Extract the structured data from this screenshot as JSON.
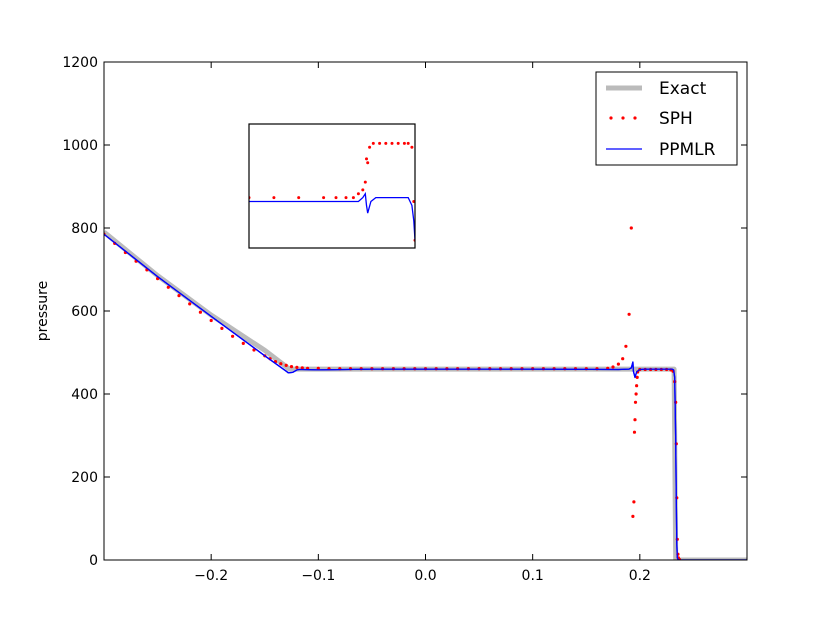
{
  "chart_data": {
    "type": "line",
    "title": "",
    "xlabel": "",
    "ylabel": "pressure",
    "xlim": [
      -0.3,
      0.3
    ],
    "ylim": [
      0,
      1200
    ],
    "x_ticks": [
      -0.2,
      -0.1,
      0.0,
      0.1,
      0.2
    ],
    "x_tick_labels": [
      "−0.2",
      "−0.1",
      "0.0",
      "0.1",
      "0.2"
    ],
    "y_ticks": [
      0,
      200,
      400,
      600,
      800,
      1000,
      1200
    ],
    "y_tick_labels": [
      "0",
      "200",
      "400",
      "600",
      "800",
      "1000",
      "1200"
    ],
    "grid": false,
    "legend_position": "top-right",
    "series": [
      {
        "name": "Exact",
        "style": "line",
        "color": "#bbbbbb",
        "x": [
          -0.3,
          -0.25,
          -0.2,
          -0.15,
          -0.127,
          0.0,
          0.1,
          0.2,
          0.232,
          0.2335,
          0.235,
          0.3
        ],
        "y": [
          790,
          685,
          590,
          505,
          460,
          460,
          460,
          460,
          460,
          0,
          0,
          0
        ]
      },
      {
        "name": "SPH",
        "style": "dots",
        "color": "#ff0000",
        "x": [
          -0.3,
          -0.29,
          -0.28,
          -0.27,
          -0.26,
          -0.25,
          -0.24,
          -0.23,
          -0.22,
          -0.21,
          -0.2,
          -0.19,
          -0.18,
          -0.17,
          -0.16,
          -0.15,
          -0.145,
          -0.14,
          -0.135,
          -0.13,
          -0.125,
          -0.12,
          -0.115,
          -0.11,
          -0.1,
          -0.09,
          -0.08,
          -0.07,
          -0.06,
          -0.05,
          -0.04,
          -0.03,
          -0.02,
          -0.01,
          0.0,
          0.01,
          0.02,
          0.03,
          0.04,
          0.05,
          0.06,
          0.07,
          0.08,
          0.09,
          0.1,
          0.11,
          0.12,
          0.13,
          0.14,
          0.15,
          0.16,
          0.17,
          0.175,
          0.18,
          0.184,
          0.187,
          0.19,
          0.192,
          0.1935,
          0.1945,
          0.195,
          0.1955,
          0.196,
          0.1965,
          0.197,
          0.1975,
          0.198,
          0.2,
          0.205,
          0.21,
          0.215,
          0.22,
          0.225,
          0.229,
          0.231,
          0.2325,
          0.2335,
          0.234,
          0.2345,
          0.235,
          0.2355,
          0.236,
          0.2365,
          0.237
        ],
        "y": [
          785,
          763,
          741,
          720,
          699,
          678,
          657,
          637,
          617,
          597,
          577,
          558,
          539,
          522,
          506,
          492,
          485,
          478,
          473,
          469,
          466,
          464,
          463,
          462,
          462,
          461,
          461,
          461,
          461,
          461,
          461,
          461,
          461,
          461,
          461,
          461,
          461,
          461,
          461,
          461,
          461,
          461,
          461,
          461,
          461,
          461,
          461,
          461,
          461,
          461,
          461,
          462,
          465,
          472,
          485,
          515,
          592,
          800,
          105,
          140,
          308,
          338,
          380,
          400,
          420,
          440,
          453,
          459,
          459,
          459,
          459,
          459,
          459,
          458,
          455,
          430,
          380,
          280,
          150,
          50,
          14,
          5,
          2,
          1
        ]
      },
      {
        "name": "PPMLR",
        "style": "line",
        "color": "#0000ff",
        "x": [
          -0.3,
          -0.25,
          -0.2,
          -0.15,
          -0.13,
          -0.128,
          -0.124,
          -0.122,
          -0.12,
          -0.118,
          -0.115,
          -0.1,
          -0.05,
          0.0,
          0.1,
          0.18,
          0.19,
          0.192,
          0.1935,
          0.194,
          0.1955,
          0.197,
          0.2,
          0.205,
          0.22,
          0.23,
          0.2315,
          0.2325,
          0.2335,
          0.234,
          0.2345,
          0.235,
          0.236,
          0.237,
          0.3
        ],
        "y": [
          785,
          683,
          587,
          492,
          455,
          451,
          452,
          455,
          458,
          459,
          459,
          458,
          460,
          460,
          460,
          459,
          460,
          463,
          477,
          455,
          440,
          453,
          459,
          460,
          460,
          460,
          458,
          440,
          290,
          140,
          40,
          5,
          1,
          0,
          0
        ]
      }
    ],
    "inset": {
      "series": [
        {
          "name": "SPH",
          "x": [
            0.1,
            0.12,
            0.14,
            0.16,
            0.17,
            0.178,
            0.184,
            0.188,
            0.1915,
            0.1935,
            0.1945,
            0.1955,
            0.197,
            0.2,
            0.205,
            0.21,
            0.215,
            0.22,
            0.225,
            0.228,
            0.231,
            0.2325,
            0.2335
          ],
          "y": [
            461,
            461,
            461,
            461,
            461,
            461,
            461,
            462,
            463,
            465,
            471,
            470,
            474,
            475,
            475,
            475,
            475,
            475,
            475,
            475,
            474,
            460,
            450
          ]
        },
        {
          "name": "PPMLR",
          "x": [
            0.1,
            0.14,
            0.17,
            0.188,
            0.1915,
            0.1935,
            0.1945,
            0.1955,
            0.198,
            0.202,
            0.21,
            0.22,
            0.228,
            0.231,
            0.2325,
            0.2335
          ],
          "y": [
            460,
            460,
            460,
            460,
            461,
            462,
            459,
            457,
            460,
            461,
            461,
            461,
            461,
            459,
            455,
            450
          ]
        }
      ]
    }
  }
}
